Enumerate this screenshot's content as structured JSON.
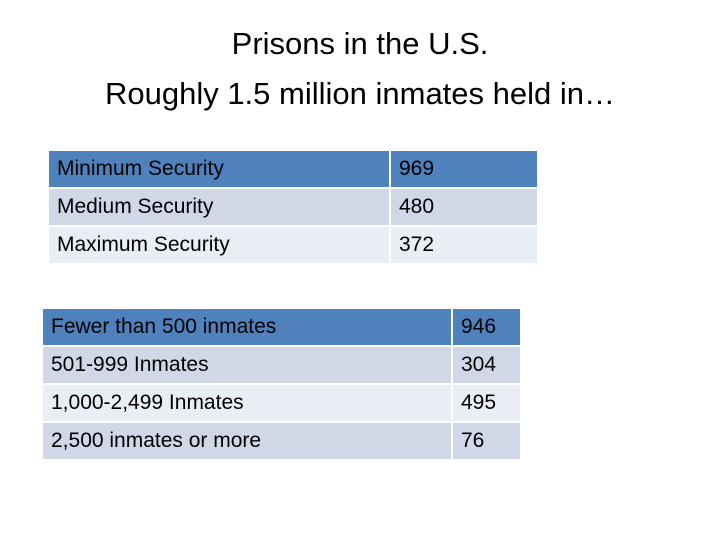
{
  "title": {
    "line1": "Prisons in the U.S.",
    "line2": "Roughly 1.5 million inmates held in…"
  },
  "table1": {
    "rows": [
      [
        "Minimum Security",
        969
      ],
      [
        "Medium Security",
        480
      ],
      [
        "Maximum Security",
        372
      ]
    ]
  },
  "table2": {
    "rows": [
      [
        "Fewer than 500 inmates",
        946
      ],
      [
        "501-999 Inmates",
        304
      ],
      [
        "1,000-2,499 Inmates",
        495
      ],
      [
        "2,500 inmates or more",
        76
      ]
    ]
  }
}
